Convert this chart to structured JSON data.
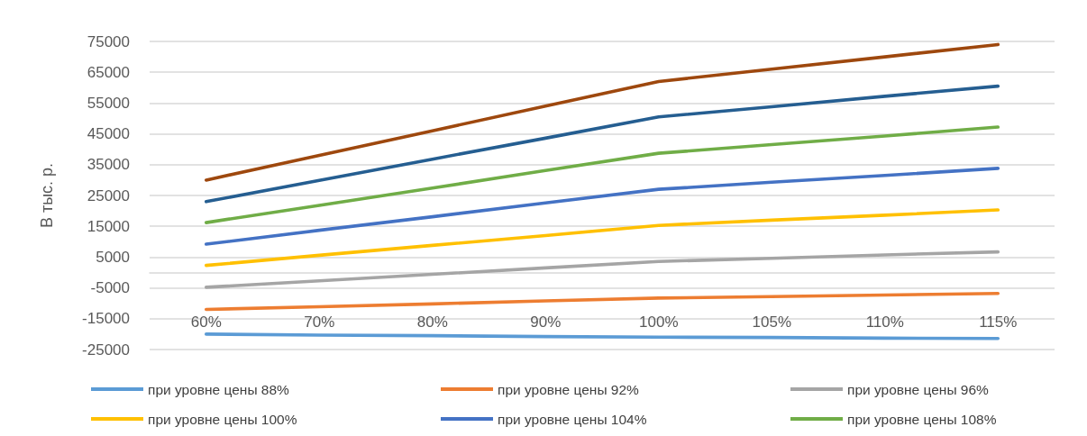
{
  "chart_data": {
    "type": "line",
    "ylabel": "В тыс. р.",
    "categories": [
      "60%",
      "70%",
      "80%",
      "90%",
      "100%",
      "105%",
      "110%",
      "115%"
    ],
    "series": [
      {
        "name": "при уровне цены 88%",
        "color": "#5b9bd5",
        "values": [
          -20000,
          -20300,
          -20500,
          -20800,
          -21000,
          -21100,
          -21300,
          -21400
        ]
      },
      {
        "name": "при уровне цены 92%",
        "color": "#ed7d31",
        "values": [
          -12000,
          -11100,
          -10200,
          -9200,
          -8300,
          -7800,
          -7300,
          -6800
        ]
      },
      {
        "name": "при уровне цены 96%",
        "color": "#a5a5a5",
        "values": [
          -4800,
          -2700,
          -600,
          1500,
          3600,
          4600,
          5700,
          6700
        ]
      },
      {
        "name": "при уровне цены 100%",
        "color": "#ffc000",
        "values": [
          2300,
          5600,
          8800,
          12000,
          15300,
          17000,
          18600,
          20300
        ]
      },
      {
        "name": "при уровне цены 104%",
        "color": "#4472c4",
        "values": [
          9200,
          13700,
          18100,
          22600,
          27000,
          29300,
          31500,
          33800
        ]
      },
      {
        "name": "при уровне цены 108%",
        "color": "#70ad47",
        "values": [
          16200,
          21800,
          27400,
          33100,
          38700,
          41500,
          44300,
          47200
        ]
      },
      {
        "color": "#255e91",
        "values": [
          23000,
          29900,
          36800,
          43600,
          50500,
          53800,
          57200,
          60500
        ]
      },
      {
        "color": "#9e480e",
        "values": [
          30000,
          38000,
          46000,
          54000,
          62000,
          66000,
          70000,
          74000
        ]
      }
    ],
    "ylim": [
      -25000,
      75000
    ],
    "yticks": [
      -25000,
      -15000,
      -5000,
      5000,
      15000,
      25000,
      35000,
      45000,
      55000,
      65000,
      75000
    ],
    "grid": "y",
    "legend": "bottom",
    "marker": "none",
    "line_style": "solid"
  }
}
